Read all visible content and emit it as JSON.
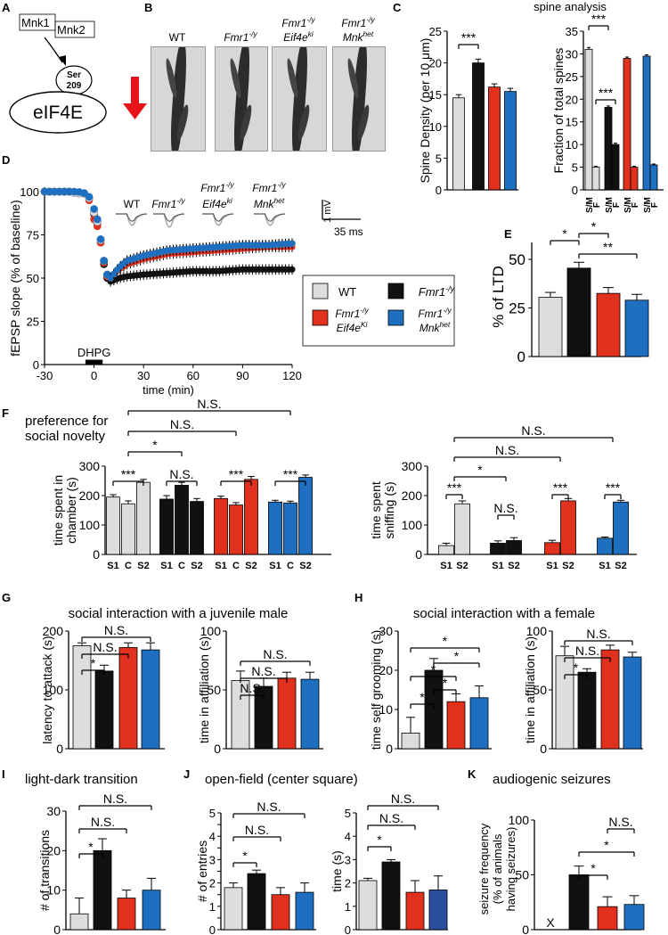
{
  "colors": {
    "wt": "#dddddd",
    "ko": "#111111",
    "eif4e": "#e0301e",
    "mnk": "#1f6fc0",
    "arrow": "#e8131b"
  },
  "panelA": {
    "letter": "A",
    "mnk1": "Mnk1",
    "mnk2": "Mnk2",
    "ser_top": "Ser",
    "ser_num": "209",
    "eif4e": "eIF4E"
  },
  "panelB": {
    "letter": "B",
    "labels": [
      {
        "l1": "WT",
        "l2": ""
      },
      {
        "l1": "Fmr1",
        "sup": "-/y",
        "l2": ""
      },
      {
        "l1": "Fmr1",
        "sup": "-/y",
        "l2": "Eif4e",
        "sup2": "ki"
      },
      {
        "l1": "Fmr1",
        "sup": "-/y",
        "l2": "Mnk",
        "sup2": "het"
      }
    ]
  },
  "chart_data": [
    {
      "id": "C1",
      "type": "bar",
      "panel": "C",
      "title": "spine analysis",
      "ylabel": "Spine Density (per 10 μm)",
      "ylim": [
        0,
        25
      ],
      "yticks": [
        0,
        5,
        10,
        15,
        20,
        25
      ],
      "categories": [
        "WT",
        "Fmr1-/y",
        "Fmr1-/y Eif4eki",
        "Fmr1-/y Mnkhet"
      ],
      "values": [
        14.5,
        20,
        16.2,
        15.5
      ],
      "errors": [
        0.5,
        0.6,
        0.5,
        0.5
      ],
      "significance": [
        {
          "between": [
            0,
            1
          ],
          "label": "***"
        }
      ]
    },
    {
      "id": "C2",
      "type": "bar",
      "panel": "C",
      "ylabel": "Fraction of total spines",
      "ylim": [
        0,
        35
      ],
      "yticks": [
        0,
        5,
        10,
        15,
        20,
        25,
        30,
        35
      ],
      "tick_labels": [
        "S/M",
        "F",
        "S/M",
        "F",
        "S/M",
        "F",
        "S/M",
        "F"
      ],
      "series": [
        {
          "name": "WT",
          "values": [
            31,
            5
          ],
          "errors": [
            0.4,
            0.2
          ]
        },
        {
          "name": "Fmr1-/y",
          "values": [
            18.2,
            10
          ],
          "errors": [
            0.3,
            0.3
          ]
        },
        {
          "name": "Fmr1-/y Eif4eki",
          "values": [
            29,
            5
          ],
          "errors": [
            0.3,
            0.2
          ]
        },
        {
          "name": "Fmr1-/y Mnkhet",
          "values": [
            29.5,
            5.5
          ],
          "errors": [
            0.3,
            0.2
          ]
        }
      ],
      "significance": [
        {
          "label": "***"
        },
        {
          "label": "***"
        }
      ]
    },
    {
      "id": "D",
      "type": "scatter",
      "panel": "D",
      "ylabel": "fEPSP slope (% of baseline)",
      "xlabel": "time (min)",
      "xlim": [
        -30,
        120
      ],
      "xticks": [
        -30,
        0,
        30,
        60,
        90,
        120
      ],
      "ylim": [
        0,
        100
      ],
      "yticks": [
        0,
        25,
        50,
        75,
        100
      ],
      "stimulus": "DHPG",
      "stimulus_range": [
        -5,
        5
      ],
      "scale_mv": "1 mV",
      "scale_ms": "35 ms",
      "trace_labels": [
        "WT",
        "Fmr1-/y",
        "Fmr1-/y Eif4eki",
        "Fmr1-/y Mnkhet"
      ],
      "series": [
        {
          "name": "WT",
          "key": "wt",
          "time": [
            -30,
            -25,
            -20,
            -15,
            -10,
            -5,
            -2,
            0,
            3,
            5,
            8,
            10,
            15,
            20,
            30,
            45,
            60,
            75,
            90,
            105,
            120
          ],
          "values": [
            100,
            100,
            100,
            100,
            99,
            99,
            95,
            88,
            80,
            64,
            52,
            50,
            56,
            60,
            63,
            66,
            67,
            68,
            69,
            69,
            70
          ]
        },
        {
          "name": "Fmr1-/y",
          "key": "ko",
          "time": [
            -30,
            -25,
            -20,
            -15,
            -10,
            -5,
            -2,
            0,
            3,
            5,
            8,
            10,
            15,
            20,
            30,
            45,
            60,
            75,
            90,
            105,
            120
          ],
          "values": [
            100,
            100,
            100,
            100,
            99,
            99,
            95,
            87,
            79,
            62,
            50,
            48,
            50,
            51,
            52,
            53,
            54,
            54,
            55,
            55,
            55
          ]
        },
        {
          "name": "Fmr1-/y Eif4eki",
          "key": "eif4e",
          "time": [
            -30,
            -25,
            -20,
            -15,
            -10,
            -5,
            -2,
            0,
            3,
            5,
            8,
            10,
            15,
            20,
            30,
            45,
            60,
            75,
            90,
            105,
            120
          ],
          "values": [
            100,
            100,
            100,
            100,
            99,
            99,
            93,
            84,
            78,
            63,
            51,
            50,
            55,
            58,
            61,
            64,
            65,
            66,
            67,
            68,
            68
          ]
        },
        {
          "name": "Fmr1-/y Mnkhet",
          "key": "mnk",
          "time": [
            -30,
            -25,
            -20,
            -15,
            -10,
            -5,
            -2,
            0,
            3,
            5,
            8,
            10,
            15,
            20,
            30,
            45,
            60,
            75,
            90,
            105,
            120
          ],
          "values": [
            100,
            100,
            100,
            100,
            100,
            99,
            96,
            90,
            81,
            64,
            52,
            50,
            56,
            60,
            63,
            66,
            67,
            68,
            69,
            69,
            70
          ]
        }
      ],
      "legend": [
        "WT",
        "Fmr1-/y",
        "Fmr1-/y Eif4eKi",
        "Fmr1-/y Mnkhet"
      ]
    },
    {
      "id": "E",
      "type": "bar",
      "panel": "E",
      "ylabel": "% of LTD",
      "ylim": [
        0,
        50
      ],
      "yticks": [
        0,
        25,
        50
      ],
      "categories": [
        "WT",
        "Fmr1-/y",
        "Fmr1-/y Eif4eki",
        "Fmr1-/y Mnkhet"
      ],
      "values": [
        30.5,
        45.5,
        32.5,
        29
      ],
      "errors": [
        2.5,
        3,
        3,
        3
      ],
      "significance": [
        {
          "label": "*"
        },
        {
          "label": "*"
        },
        {
          "label": "**"
        }
      ]
    },
    {
      "id": "F1",
      "type": "bar",
      "panel": "F",
      "title": "preference for social novelty",
      "ylabel": "time spent in chamber (s)",
      "ylim": [
        0,
        300
      ],
      "yticks": [
        0,
        100,
        200,
        300
      ],
      "tick_labels": [
        "S1",
        "C",
        "S2",
        "S1",
        "C",
        "S2",
        "S1",
        "C",
        "S2",
        "S1",
        "C",
        "S2"
      ],
      "series": [
        {
          "name": "WT",
          "values": [
            195,
            172,
            245
          ],
          "errors": [
            8,
            10,
            10
          ]
        },
        {
          "name": "Fmr1-/y",
          "values": [
            188,
            235,
            180
          ],
          "errors": [
            12,
            10,
            10
          ]
        },
        {
          "name": "Fmr1-/y Eif4eki",
          "values": [
            190,
            168,
            255
          ],
          "errors": [
            8,
            8,
            10
          ]
        },
        {
          "name": "Fmr1-/y Mnkhet",
          "values": [
            178,
            175,
            262
          ],
          "errors": [
            6,
            6,
            8
          ]
        }
      ],
      "significance": [
        {
          "label": "***"
        },
        {
          "label": "N.S."
        },
        {
          "label": "***"
        },
        {
          "label": "***"
        },
        {
          "label": "*"
        },
        {
          "label": "N.S."
        },
        {
          "label": "N.S."
        }
      ]
    },
    {
      "id": "F2",
      "type": "bar",
      "panel": "F",
      "ylabel": "time spent sniffing (s)",
      "ylim": [
        0,
        300
      ],
      "yticks": [
        0,
        100,
        200,
        300
      ],
      "tick_labels": [
        "S1",
        "S2",
        "S1",
        "S2",
        "S1",
        "S2",
        "S1",
        "S2"
      ],
      "series": [
        {
          "name": "WT",
          "values": [
            30,
            172
          ],
          "errors": [
            8,
            10
          ]
        },
        {
          "name": "Fmr1-/y",
          "values": [
            38,
            47
          ],
          "errors": [
            8,
            10
          ]
        },
        {
          "name": "Fmr1-/y Eif4eki",
          "values": [
            40,
            182
          ],
          "errors": [
            8,
            8
          ]
        },
        {
          "name": "Fmr1-/y Mnkhet",
          "values": [
            55,
            178
          ],
          "errors": [
            4,
            6
          ]
        }
      ],
      "significance": [
        {
          "label": "***"
        },
        {
          "label": "N.S."
        },
        {
          "label": "***"
        },
        {
          "label": "***"
        },
        {
          "label": "*"
        },
        {
          "label": "N.S."
        },
        {
          "label": "N.S."
        }
      ]
    },
    {
      "id": "G1",
      "type": "bar",
      "panel": "G",
      "title": "social interaction with a juvenile male",
      "ylabel": "latency to attack (s)",
      "ylim": [
        0,
        200
      ],
      "yticks": [
        0,
        100,
        200
      ],
      "categories": [
        "WT",
        "Fmr1-/y",
        "Fmr1-/y Eif4eki",
        "Fmr1-/y Mnkhet"
      ],
      "values": [
        175,
        132,
        172,
        168
      ],
      "errors": [
        5,
        10,
        8,
        12
      ],
      "significance": [
        {
          "label": "*"
        },
        {
          "label": "N.S."
        },
        {
          "label": "N.S."
        }
      ]
    },
    {
      "id": "G2",
      "type": "bar",
      "panel": "G",
      "ylabel": "time in affiliation (s)",
      "ylim": [
        0,
        100
      ],
      "yticks": [
        0,
        50,
        100
      ],
      "categories": [
        "WT",
        "Fmr1-/y",
        "Fmr1-/y Eif4eki",
        "Fmr1-/y Mnkhet"
      ],
      "values": [
        58,
        53,
        60,
        59
      ],
      "errors": [
        8,
        7,
        5,
        6
      ],
      "significance": [
        {
          "label": "N.S."
        },
        {
          "label": "N.S."
        },
        {
          "label": "N.S."
        }
      ]
    },
    {
      "id": "H1",
      "type": "bar",
      "panel": "H",
      "title": "social interaction with a female",
      "ylabel": "time self grooming (s)",
      "ylim": [
        0,
        30
      ],
      "yticks": [
        0,
        10,
        20,
        30
      ],
      "categories": [
        "WT",
        "Fmr1-/y",
        "Fmr1-/y Eif4eki",
        "Fmr1-/y Mnkhet"
      ],
      "values": [
        4,
        20,
        12,
        13
      ],
      "errors": [
        4,
        3,
        2,
        3
      ],
      "significance": [
        {
          "label": "*"
        },
        {
          "label": "*"
        },
        {
          "label": "*"
        },
        {
          "label": "*"
        },
        {
          "label": "*"
        }
      ]
    },
    {
      "id": "H2",
      "type": "bar",
      "panel": "H",
      "ylabel": "time in affiliation (s)",
      "ylim": [
        0,
        100
      ],
      "yticks": [
        0,
        50,
        100
      ],
      "categories": [
        "WT",
        "Fmr1-/y",
        "Fmr1-/y Eif4eki",
        "Fmr1-/y Mnkhet"
      ],
      "values": [
        79,
        65,
        84,
        78
      ],
      "errors": [
        8,
        3,
        4,
        4
      ],
      "significance": [
        {
          "label": "*"
        },
        {
          "label": "N.S."
        },
        {
          "label": "N.S."
        }
      ]
    },
    {
      "id": "I",
      "type": "bar",
      "panel": "I",
      "title": "light-dark transition",
      "ylabel": "# of transitions",
      "ylim": [
        0,
        30
      ],
      "yticks": [
        0,
        10,
        20,
        30
      ],
      "categories": [
        "WT",
        "Fmr1-/y",
        "Fmr1-/y Eif4eki",
        "Fmr1-/y Mnkhet"
      ],
      "values": [
        4,
        20,
        8,
        10
      ],
      "errors": [
        4,
        3,
        2,
        3
      ],
      "significance": [
        {
          "label": "*"
        },
        {
          "label": "N.S."
        },
        {
          "label": "N.S."
        }
      ]
    },
    {
      "id": "J1",
      "type": "bar",
      "panel": "J",
      "title": "open-field (center square)",
      "ylabel": "# of entries",
      "ylim": [
        0,
        5
      ],
      "yticks": [
        0,
        0.5,
        1,
        1.5,
        2,
        2.5,
        3,
        3.5,
        4,
        4.5,
        5
      ],
      "ytick_labels": [
        "0",
        "",
        "1",
        "",
        "2",
        "",
        "3",
        "",
        "4",
        "",
        "5"
      ],
      "categories": [
        "WT",
        "Fmr1-/y",
        "Fmr1-/y Eif4eki",
        "Fmr1-/y Mnkhet"
      ],
      "values": [
        1.8,
        2.4,
        1.5,
        1.6
      ],
      "errors": [
        0.2,
        0.15,
        0.3,
        0.4
      ],
      "significance": [
        {
          "label": "*"
        },
        {
          "label": "N.S."
        },
        {
          "label": "N.S."
        }
      ]
    },
    {
      "id": "J2",
      "type": "bar",
      "panel": "J",
      "ylabel": "time (s)",
      "ylim": [
        0,
        5
      ],
      "yticks": [
        0,
        1,
        2,
        3,
        4,
        5
      ],
      "categories": [
        "WT",
        "Fmr1-/y",
        "Fmr1-/y Eif4eki",
        "Fmr1-/y Mnkhet"
      ],
      "values": [
        2.1,
        2.9,
        1.6,
        1.7
      ],
      "errors": [
        0.1,
        0.1,
        0.5,
        0.6
      ],
      "significance": [
        {
          "label": "*"
        },
        {
          "label": "N.S."
        },
        {
          "label": "N.S."
        }
      ]
    },
    {
      "id": "K",
      "type": "bar",
      "panel": "K",
      "title": "audiogenic seizures",
      "ylabel": "seizure frequency (% of animals having seizures)",
      "ylim": [
        0,
        100
      ],
      "yticks": [
        0,
        50,
        100
      ],
      "categories": [
        "WT",
        "Fmr1-/y",
        "Fmr1-/y Eif4eki",
        "Fmr1-/y Mnkhet"
      ],
      "values": [
        0,
        50,
        21,
        23
      ],
      "errors": [
        0,
        8,
        9,
        8
      ],
      "absent_marker": "X",
      "significance": [
        {
          "label": "*"
        },
        {
          "label": "*"
        },
        {
          "label": "N.S."
        }
      ]
    }
  ]
}
